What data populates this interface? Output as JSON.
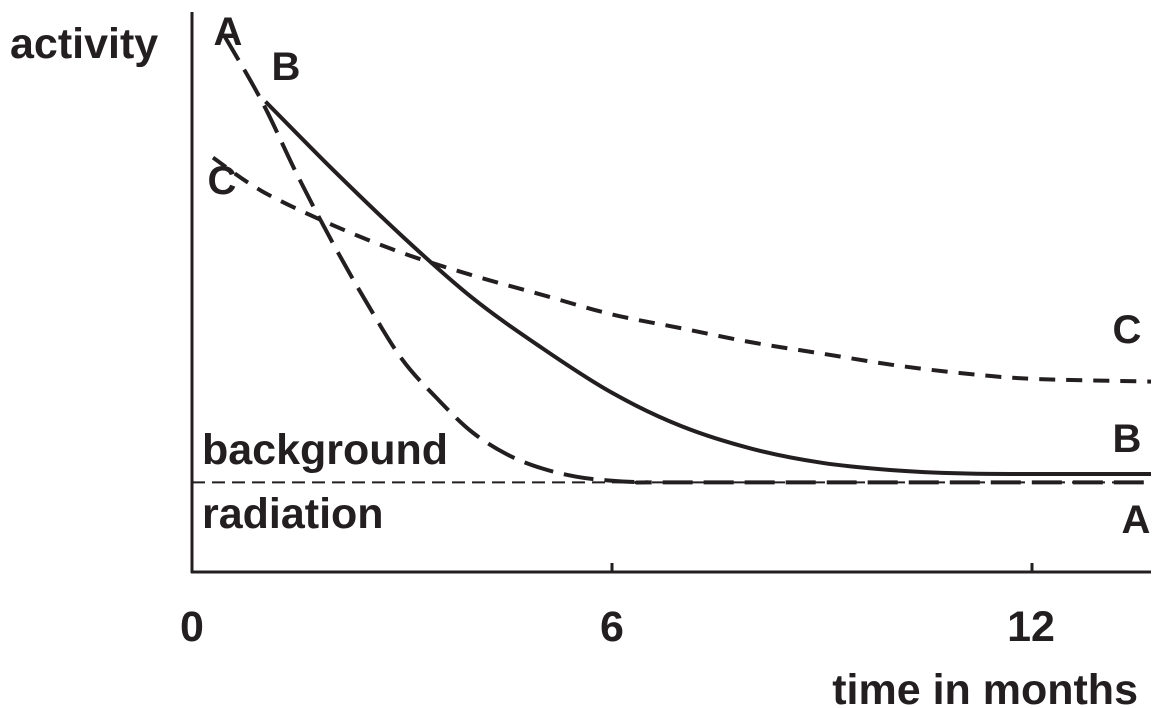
{
  "chart_data": {
    "type": "line",
    "ylabel": "activity",
    "xlabel": "time in months",
    "x_ticks": [
      "0",
      "6",
      "12"
    ],
    "xlim": [
      0,
      13.7
    ],
    "ylim": [
      0,
      100
    ],
    "y_axis_numbered": false,
    "grid": false,
    "reference_line": {
      "label_top": "background",
      "label_bottom": "radiation",
      "y": 16,
      "style": "dashed"
    },
    "series": [
      {
        "name": "A",
        "style": "long-dashed",
        "x": [
          0.45,
          1.0,
          1.5,
          2.0,
          2.5,
          3.0,
          3.5,
          4.0,
          4.5,
          5.0,
          5.5,
          6.0,
          6.5,
          7.0,
          13.7
        ],
        "y": [
          96,
          84,
          71,
          59,
          48,
          38,
          31,
          25,
          21,
          18.5,
          17,
          16.3,
          16,
          16,
          16
        ]
      },
      {
        "name": "B",
        "style": "solid",
        "x": [
          1.05,
          2.0,
          3.0,
          4.0,
          5.0,
          6.0,
          7.0,
          8.0,
          9.0,
          10.0,
          11.0,
          12.0,
          13.7
        ],
        "y": [
          84,
          72,
          60,
          49,
          40,
          32,
          26,
          22,
          19.5,
          18.2,
          17.6,
          17.5,
          17.5
        ]
      },
      {
        "name": "C",
        "style": "short-dashed",
        "x": [
          0.3,
          1.0,
          2.0,
          3.0,
          4.0,
          5.0,
          6.0,
          7.0,
          8.0,
          9.0,
          10.0,
          11.0,
          12.0,
          13.7
        ],
        "y": [
          74,
          68,
          62,
          57,
          53,
          49.5,
          46,
          43.5,
          41,
          39,
          37,
          35.5,
          34.5,
          34
        ]
      }
    ]
  }
}
